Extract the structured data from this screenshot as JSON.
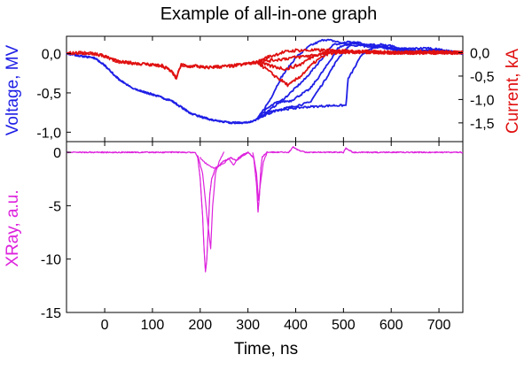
{
  "chart_data": [
    {
      "type": "line",
      "title": "Example of all-in-one graph",
      "xlabel": "Time, ns",
      "xlim": [
        -80,
        750
      ],
      "x_ticks": [
        0,
        100,
        200,
        300,
        400,
        500,
        600,
        700
      ],
      "x_tick_labels": [
        "0",
        "100",
        "200",
        "300",
        "400",
        "500",
        "600",
        "700"
      ],
      "panels": [
        {
          "name": "voltage-current",
          "y_left": {
            "label": "Voltage, MV",
            "color": "#1f1fe6",
            "ylim": [
              -1.12,
              0.22
            ],
            "ticks": [
              0.0,
              -0.5,
              -1.0
            ],
            "tick_labels": [
              "0,0",
              "-0,5",
              "-1,0"
            ]
          },
          "y_right": {
            "label": "Current, kA",
            "color": "#e01010",
            "ylim": [
              -1.9,
              0.35
            ],
            "ticks": [
              0.0,
              -0.5,
              -1.0,
              -1.5
            ],
            "tick_labels": [
              "0,0",
              "-0,5",
              "-1,0",
              "-1,5"
            ]
          },
          "series": [
            {
              "name": "Voltage",
              "axis": "left",
              "color": "#1f1fe6",
              "x": [
                -80,
                -20,
                0,
                30,
                60,
                100,
                140,
                180,
                220,
                260,
                290,
                310,
                320
              ],
              "y": [
                0.0,
                -0.06,
                -0.15,
                -0.33,
                -0.45,
                -0.52,
                -0.6,
                -0.76,
                -0.84,
                -0.88,
                -0.88,
                -0.86,
                -0.83
              ],
              "branches": [
                {
                  "x": [
                    320,
                    345,
                    370,
                    400,
                    430,
                    460,
                    480,
                    520,
                    560,
                    600,
                    650,
                    700,
                    750
                  ],
                  "y": [
                    -0.83,
                    -0.6,
                    -0.3,
                    -0.05,
                    0.1,
                    0.18,
                    0.16,
                    0.1,
                    0.12,
                    0.05,
                    0.02,
                    0.05,
                    0.0
                  ]
                },
                {
                  "x": [
                    320,
                    345,
                    380,
                    420,
                    450,
                    480,
                    510,
                    550,
                    600,
                    650,
                    700,
                    750
                  ],
                  "y": [
                    -0.83,
                    -0.72,
                    -0.55,
                    -0.32,
                    -0.1,
                    0.12,
                    0.15,
                    0.08,
                    0.1,
                    0.02,
                    0.05,
                    0.0
                  ]
                },
                {
                  "x": [
                    320,
                    350,
                    390,
                    430,
                    460,
                    490,
                    520,
                    560,
                    620,
                    680,
                    750
                  ],
                  "y": [
                    -0.83,
                    -0.73,
                    -0.68,
                    -0.62,
                    -0.35,
                    -0.05,
                    0.15,
                    0.1,
                    0.06,
                    0.07,
                    0.0
                  ]
                },
                {
                  "x": [
                    320,
                    340,
                    360,
                    390,
                    430,
                    460,
                    490,
                    520,
                    570,
                    620,
                    700,
                    750
                  ],
                  "y": [
                    -0.83,
                    -0.7,
                    -0.62,
                    -0.6,
                    -0.45,
                    -0.2,
                    0.08,
                    0.14,
                    0.08,
                    0.05,
                    0.03,
                    0.0
                  ]
                },
                {
                  "x": [
                    320,
                    360,
                    420,
                    480,
                    505,
                    510,
                    540,
                    580,
                    630,
                    690,
                    750
                  ],
                  "y": [
                    -0.83,
                    -0.72,
                    -0.68,
                    -0.66,
                    -0.66,
                    -0.32,
                    0.0,
                    0.12,
                    0.0,
                    0.05,
                    0.0
                  ]
                }
              ]
            },
            {
              "name": "Current",
              "axis": "right",
              "color": "#e01010",
              "x": [
                -80,
                -20,
                0,
                30,
                60,
                90,
                120,
                140,
                150,
                160,
                175,
                190,
                210,
                240,
                270,
                290,
                310,
                320
              ],
              "y": [
                0.0,
                -0.02,
                -0.08,
                -0.2,
                -0.22,
                -0.25,
                -0.28,
                -0.4,
                -0.55,
                -0.25,
                -0.3,
                -0.28,
                -0.32,
                -0.3,
                -0.28,
                -0.25,
                -0.22,
                -0.2
              ],
              "branches": [
                {
                  "x": [
                    320,
                    340,
                    370,
                    400,
                    430,
                    470,
                    520,
                    600,
                    680,
                    750
                  ],
                  "y": [
                    -0.2,
                    -0.1,
                    0.0,
                    0.05,
                    0.05,
                    0.05,
                    0.02,
                    0.0,
                    0.02,
                    0.0
                  ]
                },
                {
                  "x": [
                    320,
                    345,
                    380,
                    410,
                    440,
                    480,
                    540,
                    620,
                    700,
                    750
                  ],
                  "y": [
                    -0.2,
                    -0.28,
                    -0.35,
                    -0.25,
                    -0.05,
                    0.05,
                    0.02,
                    0.0,
                    0.0,
                    0.0
                  ]
                },
                {
                  "x": [
                    320,
                    350,
                    385,
                    410,
                    440,
                    470,
                    530,
                    620,
                    700,
                    750
                  ],
                  "y": [
                    -0.2,
                    -0.45,
                    -0.7,
                    -0.5,
                    -0.2,
                    0.0,
                    0.02,
                    0.0,
                    0.0,
                    0.0
                  ]
                },
                {
                  "x": [
                    320,
                    360,
                    400,
                    440,
                    480,
                    540,
                    620,
                    700,
                    750
                  ],
                  "y": [
                    -0.2,
                    -0.15,
                    -0.1,
                    -0.05,
                    0.0,
                    0.02,
                    0.0,
                    0.0,
                    0.0
                  ]
                }
              ]
            }
          ]
        },
        {
          "name": "xray",
          "y_left": {
            "label": "XRay, a.u.",
            "color": "#dd22dd",
            "ylim": [
              -15,
              1
            ],
            "ticks": [
              0,
              -5,
              -10,
              -15
            ],
            "tick_labels": [
              "0",
              "-5",
              "-10",
              "-15"
            ]
          },
          "series": [
            {
              "name": "XRay",
              "axis": "left",
              "color": "#dd22dd",
              "x": [
                -80,
                0,
                100,
                190,
                195,
                200,
                205,
                208,
                211,
                214,
                217,
                220,
                224,
                228,
                232,
                240,
                250,
                265,
                275,
                290,
                300,
                312,
                318,
                321,
                324,
                327,
                330,
                340,
                360,
                385,
                395,
                405,
                420,
                470,
                500,
                505,
                520,
                600,
                700,
                750
              ],
              "y": [
                0.0,
                0.0,
                0.0,
                0.0,
                -0.5,
                -2.5,
                -6.0,
                -9.0,
                -11.2,
                -10.0,
                -7.0,
                -4.0,
                -2.5,
                -2.0,
                -1.5,
                -1.2,
                -0.8,
                -0.5,
                -0.8,
                -0.3,
                0.0,
                -0.5,
                -3.0,
                -5.6,
                -4.0,
                -1.5,
                -0.4,
                0.0,
                0.0,
                0.0,
                0.5,
                0.2,
                0.0,
                0.0,
                0.0,
                0.4,
                0.0,
                0.0,
                0.0,
                0.0
              ],
              "branches": [
                {
                  "x": [
                    195,
                    205,
                    212,
                    218,
                    222,
                    226,
                    232,
                    240,
                    250
                  ],
                  "y": [
                    -0.3,
                    -2.0,
                    -5.0,
                    -7.5,
                    -9.0,
                    -5.0,
                    -2.0,
                    -0.8,
                    0.0
                  ]
                },
                {
                  "x": [
                    310,
                    318,
                    322,
                    326,
                    332,
                    340
                  ],
                  "y": [
                    0.0,
                    -2.0,
                    -4.5,
                    -3.0,
                    -1.0,
                    0.0
                  ]
                },
                {
                  "x": [
                    200,
                    210,
                    230,
                    250,
                    260,
                    270,
                    280,
                    290,
                    300
                  ],
                  "y": [
                    -0.5,
                    -1.0,
                    -1.5,
                    -1.0,
                    -0.6,
                    -1.2,
                    -0.5,
                    -0.2,
                    0.0
                  ]
                }
              ]
            }
          ]
        }
      ]
    }
  ]
}
